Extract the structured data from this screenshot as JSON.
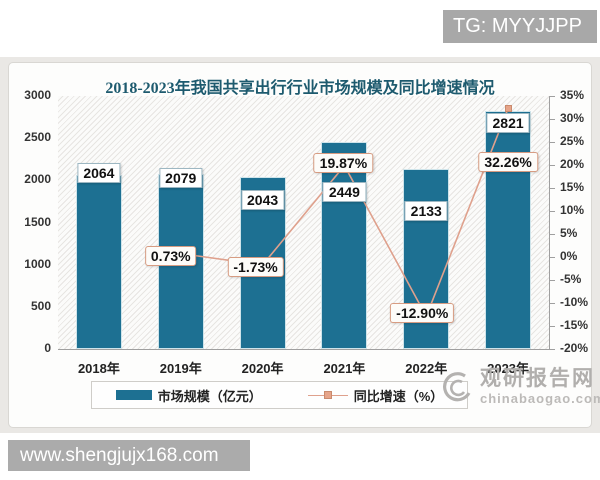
{
  "page": {
    "tg_badge": "TG: MYYJJPP",
    "url_badge": "www.shengjujx168.com"
  },
  "watermark": {
    "name": "观研报告网",
    "domain": "chinabaogao.com"
  },
  "chart_data": {
    "type": "bar",
    "title": "2018-2023年我国共享出行行业市场规模及同比增速情况",
    "categories": [
      "2018年",
      "2019年",
      "2020年",
      "2021年",
      "2022年",
      "2023年"
    ],
    "series": [
      {
        "name": "市场规模（亿元）",
        "type": "bar",
        "axis": "left",
        "color": "#1d7092",
        "values": [
          2064,
          2079,
          2043,
          2449,
          2133,
          2821
        ],
        "labels": [
          "2064",
          "2079",
          "2043",
          "2449",
          "2133",
          "2821"
        ]
      },
      {
        "name": "同比增速（%）",
        "type": "line",
        "axis": "right",
        "color": "#dfa18d",
        "x_start_index": 1,
        "values": [
          0.73,
          -1.73,
          19.87,
          -12.9,
          32.26
        ],
        "labels": [
          "0.73%",
          "-1.73%",
          "19.87%",
          "-12.90%",
          "32.26%"
        ]
      }
    ],
    "left_axis": {
      "min": 0,
      "max": 3000,
      "step": 500,
      "ticks": [
        "0",
        "500",
        "1000",
        "1500",
        "2000",
        "2500",
        "3000"
      ]
    },
    "right_axis": {
      "min": -20,
      "max": 35,
      "step": 5,
      "ticks": [
        "-20%",
        "-15%",
        "-10%",
        "-5%",
        "0%",
        "5%",
        "10%",
        "15%",
        "20%",
        "25%",
        "30%",
        "35%"
      ]
    },
    "legend_position": "bottom",
    "grid": false,
    "plot_background": "diagonal-hatch"
  }
}
